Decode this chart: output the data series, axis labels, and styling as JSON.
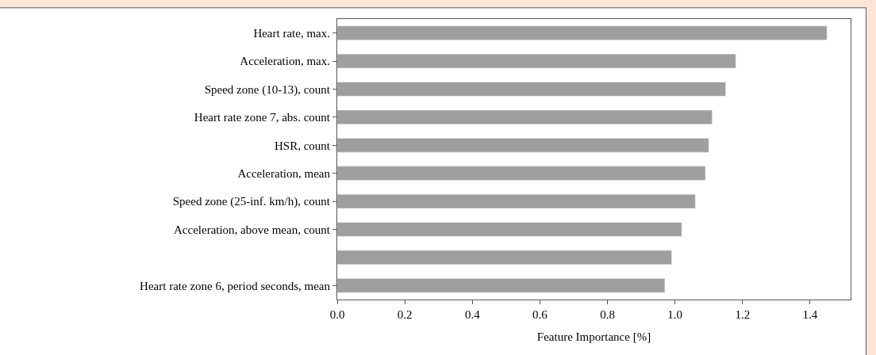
{
  "chart_data": {
    "type": "bar",
    "orientation": "horizontal",
    "xlabel": "Feature Importance [%]",
    "categories": [
      "Heart rate, max.",
      "Acceleration, max.",
      "Speed zone (10-13), count",
      "Heart rate zone 7, abs. count",
      "HSR, count",
      "Acceleration, mean",
      "Speed zone (25-inf. km/h), count",
      "Acceleration, above mean, count",
      null,
      "Heart rate zone 6, period seconds, mean"
    ],
    "values": [
      1.45,
      1.18,
      1.15,
      1.11,
      1.1,
      1.09,
      1.06,
      1.02,
      0.99,
      0.97
    ],
    "color": "#9e9e9e",
    "xlim": [
      0,
      1.52
    ],
    "xticks": [
      {
        "value": 0,
        "label": "0.0"
      },
      0.2,
      0.4,
      0.6,
      0.8,
      {
        "value": 1,
        "label": "1.0"
      },
      1.2,
      1.4
    ],
    "legend": false
  }
}
